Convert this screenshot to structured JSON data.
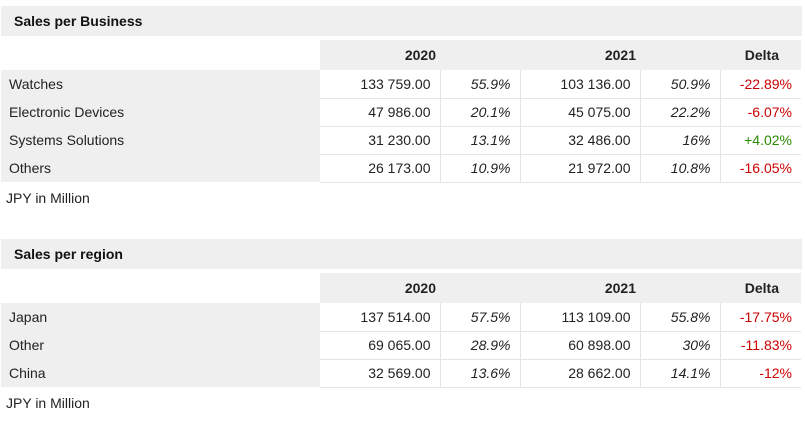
{
  "sections": [
    {
      "title": "Sales per Business",
      "headers": {
        "year1": "2020",
        "year2": "2021",
        "delta": "Delta"
      },
      "rows": [
        {
          "label": "Watches",
          "v2020": "133 759.00",
          "p2020": "55.9%",
          "v2021": "103 136.00",
          "p2021": "50.9%",
          "delta": "-22.89%",
          "sign": "neg"
        },
        {
          "label": "Electronic Devices",
          "v2020": "47 986.00",
          "p2020": "20.1%",
          "v2021": "45 075.00",
          "p2021": "22.2%",
          "delta": "-6.07%",
          "sign": "neg"
        },
        {
          "label": "Systems Solutions",
          "v2020": "31 230.00",
          "p2020": "13.1%",
          "v2021": "32 486.00",
          "p2021": "16%",
          "delta": "+4.02%",
          "sign": "pos"
        },
        {
          "label": "Others",
          "v2020": "26 173.00",
          "p2020": "10.9%",
          "v2021": "21 972.00",
          "p2021": "10.8%",
          "delta": "-16.05%",
          "sign": "neg"
        }
      ],
      "footnote": "JPY in Million"
    },
    {
      "title": "Sales per region",
      "headers": {
        "year1": "2020",
        "year2": "2021",
        "delta": "Delta"
      },
      "rows": [
        {
          "label": "Japan",
          "v2020": "137 514.00",
          "p2020": "57.5%",
          "v2021": "113 109.00",
          "p2021": "55.8%",
          "delta": "-17.75%",
          "sign": "neg"
        },
        {
          "label": "Other",
          "v2020": "69 065.00",
          "p2020": "28.9%",
          "v2021": "60 898.00",
          "p2021": "30%",
          "delta": "-11.83%",
          "sign": "neg"
        },
        {
          "label": "China",
          "v2020": "32 569.00",
          "p2020": "13.6%",
          "v2021": "28 662.00",
          "p2021": "14.1%",
          "delta": "-12%",
          "sign": "neg"
        }
      ],
      "footnote": "JPY in Million"
    }
  ]
}
